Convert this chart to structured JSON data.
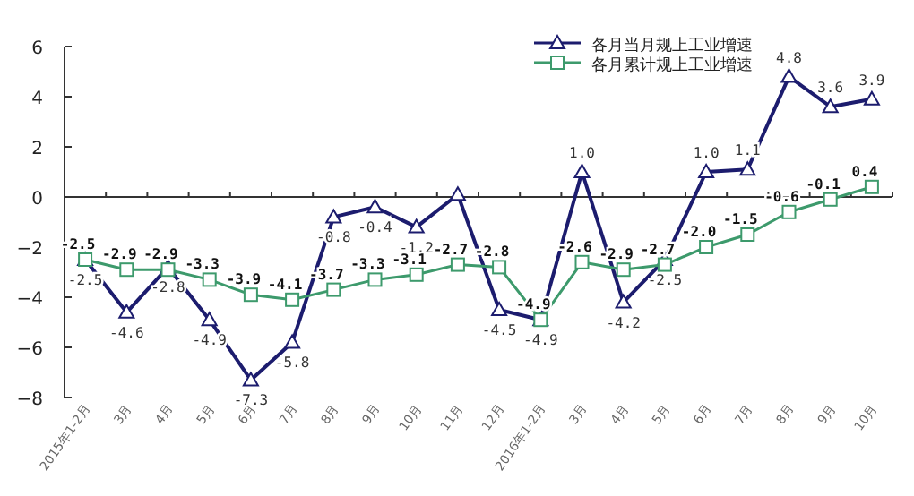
{
  "chart_data": {
    "type": "line",
    "categories": [
      "2015年1-2月",
      "3月",
      "4月",
      "5月",
      "6月",
      "7月",
      "8月",
      "9月",
      "10月",
      "11月",
      "12月",
      "2016年1-2月",
      "3月",
      "4月",
      "5月",
      "6月",
      "7月",
      "8月",
      "9月",
      "10月"
    ],
    "series": [
      {
        "name": "各月当月规上工业增速",
        "color": "#1c1c6e",
        "marker": "triangle",
        "values": [
          -2.5,
          -4.6,
          -2.8,
          -4.9,
          -7.3,
          -5.8,
          -0.8,
          -0.4,
          -1.2,
          0.1,
          -4.5,
          -4.9,
          1.0,
          -4.2,
          -2.5,
          1.0,
          1.1,
          4.8,
          3.6,
          3.9
        ],
        "value_labels": [
          "-2.5",
          "-4.6",
          "-2.8",
          "-4.9",
          "-7.3",
          "-5.8",
          "-0.8",
          "-0.4",
          "-1.2",
          null,
          "-4.5",
          "-4.9",
          "1.0",
          "-4.2",
          "-2.5",
          "1.0",
          "1.1",
          "4.8",
          "3.6",
          "3.9"
        ]
      },
      {
        "name": "各月累计规上工业增速",
        "color": "#3d9a6c",
        "marker": "square",
        "values": [
          -2.5,
          -2.9,
          -2.9,
          -3.3,
          -3.9,
          -4.1,
          -3.7,
          -3.3,
          -3.1,
          -2.7,
          -2.8,
          -4.9,
          -2.6,
          -2.9,
          -2.7,
          -2.0,
          -1.5,
          -0.6,
          -0.1,
          0.4
        ],
        "value_labels": [
          "-2.5",
          "-2.9",
          "-2.9",
          "-3.3",
          "-3.9",
          "-4.1",
          "-3.7",
          "-3.3",
          "-3.1",
          "-2.7",
          "-2.8",
          "-4.9",
          "-2.6",
          "-2.9",
          "-2.7",
          "-2.0",
          "-1.5",
          "-0.6",
          "-0.1",
          "0.4"
        ]
      }
    ],
    "ylim": [
      -8,
      6
    ],
    "yticks": [
      -8,
      -6,
      -4,
      -2,
      0,
      2,
      4,
      6
    ],
    "legend": "top right"
  }
}
